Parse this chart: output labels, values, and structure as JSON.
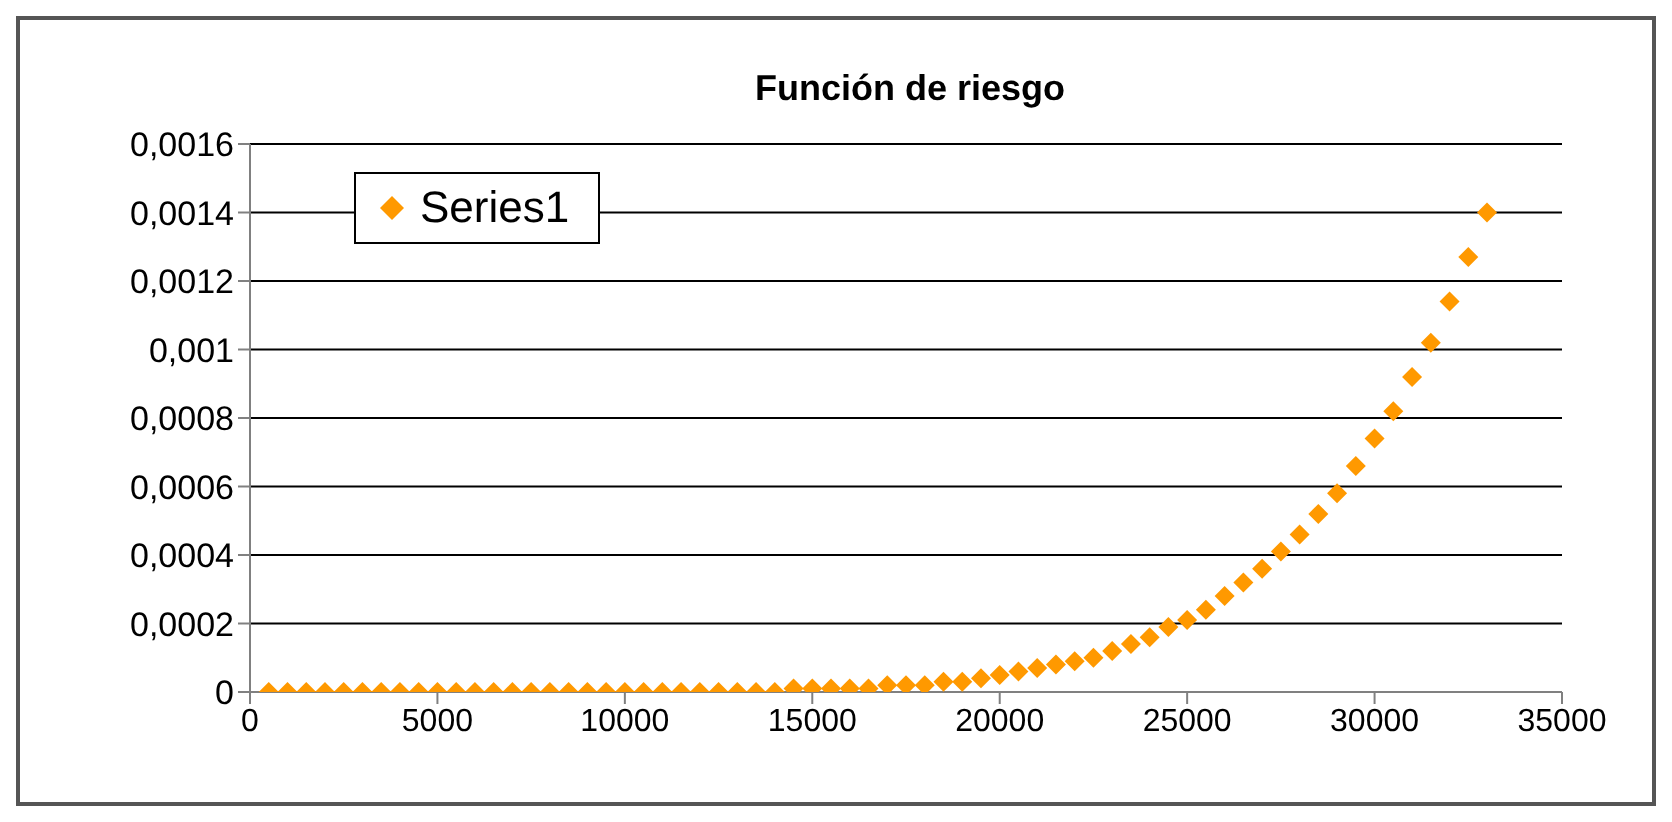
{
  "chart_data": {
    "type": "scatter",
    "title": "Función de riesgo",
    "x": [
      500,
      1000,
      1500,
      2000,
      2500,
      3000,
      3500,
      4000,
      4500,
      5000,
      5500,
      6000,
      6500,
      7000,
      7500,
      8000,
      8500,
      9000,
      9500,
      10000,
      10500,
      11000,
      11500,
      12000,
      12500,
      13000,
      13500,
      14000,
      14500,
      15000,
      15500,
      16000,
      16500,
      17000,
      17500,
      18000,
      18500,
      19000,
      19500,
      20000,
      20500,
      21000,
      21500,
      22000,
      22500,
      23000,
      23500,
      24000,
      24500,
      25000,
      25500,
      26000,
      26500,
      27000,
      27500,
      28000,
      28500,
      29000,
      29500,
      30000,
      30500,
      31000,
      31500,
      32000,
      32500,
      33000
    ],
    "series": [
      {
        "name": "Series1",
        "color": "#ff9900",
        "values": [
          0,
          0,
          0,
          0,
          0,
          0,
          0,
          0,
          0,
          0,
          0,
          0,
          0,
          0,
          0,
          0,
          0,
          0,
          0,
          0,
          0,
          0,
          0,
          0,
          0,
          0,
          0,
          0,
          1e-05,
          1e-05,
          1e-05,
          1e-05,
          1e-05,
          2e-05,
          2e-05,
          2e-05,
          3e-05,
          3e-05,
          4e-05,
          5e-05,
          6e-05,
          7e-05,
          8e-05,
          9e-05,
          0.0001,
          0.00012,
          0.00014,
          0.00016,
          0.00019,
          0.00021,
          0.00024,
          0.00028,
          0.00032,
          0.00036,
          0.00041,
          0.00046,
          0.00052,
          0.00058,
          0.00066,
          0.00074,
          0.00082,
          0.00092,
          0.00102,
          0.00114,
          0.00127,
          0.0014
        ]
      }
    ],
    "xlim": [
      0,
      35000
    ],
    "xticks": [
      0,
      5000,
      10000,
      15000,
      20000,
      25000,
      30000,
      35000
    ],
    "ylim": [
      0,
      0.0016
    ],
    "yticks": [
      {
        "value": 0,
        "label": "0"
      },
      {
        "value": 0.0002,
        "label": "0,0002"
      },
      {
        "value": 0.0004,
        "label": "0,0004"
      },
      {
        "value": 0.0006,
        "label": "0,0006"
      },
      {
        "value": 0.0008,
        "label": "0,0008"
      },
      {
        "value": 0.001,
        "label": "0,001"
      },
      {
        "value": 0.0012,
        "label": "0,0012"
      },
      {
        "value": 0.0014,
        "label": "0,0014"
      },
      {
        "value": 0.0016,
        "label": "0,0016"
      }
    ],
    "grid": "y",
    "legend": "top left",
    "marker": "diamond"
  }
}
